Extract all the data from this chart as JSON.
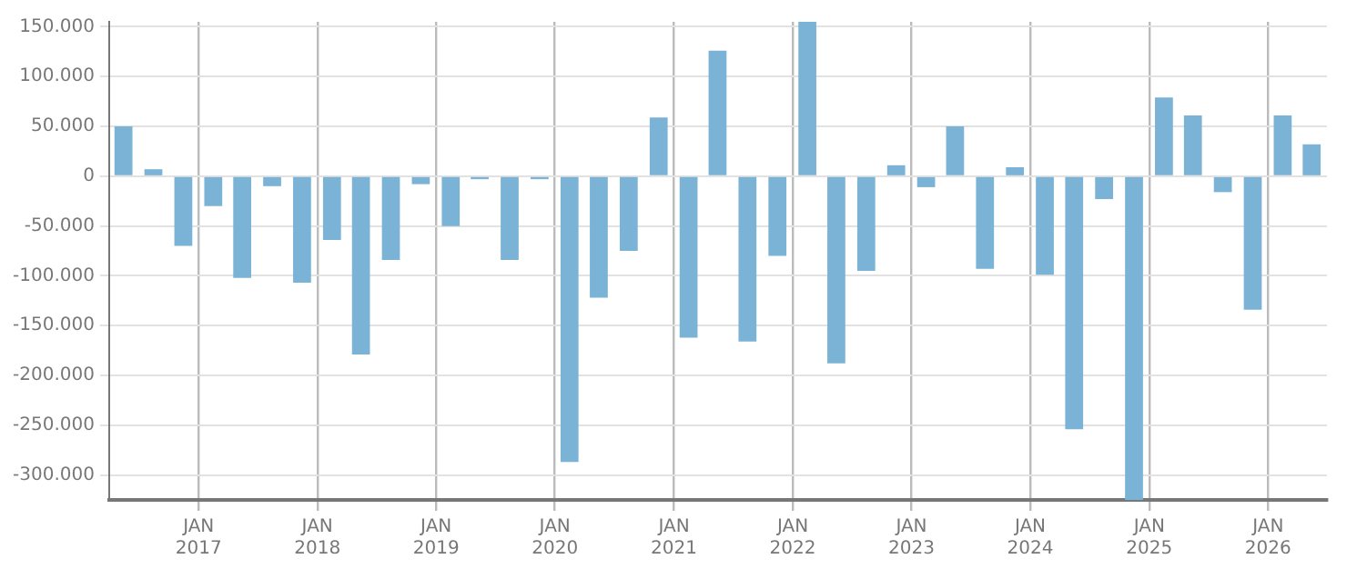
{
  "chart_data": {
    "type": "bar",
    "color": "#7ab3d5",
    "x": [
      "2016-05-15",
      "2016-08-15",
      "2016-11-15",
      "2017-02-15",
      "2017-05-15",
      "2017-08-15",
      "2017-11-15",
      "2018-02-15",
      "2018-05-15",
      "2018-08-15",
      "2018-11-15",
      "2019-02-15",
      "2019-05-15",
      "2019-08-15",
      "2019-11-15",
      "2020-02-15",
      "2020-05-15",
      "2020-08-15",
      "2020-11-15",
      "2021-02-15",
      "2021-05-15",
      "2021-08-15",
      "2021-11-15",
      "2022-02-15",
      "2022-05-15",
      "2022-08-15",
      "2022-11-15",
      "2023-02-15",
      "2023-05-15",
      "2023-08-15",
      "2023-11-15",
      "2024-02-15",
      "2024-05-15",
      "2024-08-15",
      "2024-11-15",
      "2025-02-15",
      "2025-05-15",
      "2025-08-15",
      "2025-11-15",
      "2026-02-15",
      "2026-05-15"
    ],
    "values": [
      50000,
      7000,
      -70000,
      -30000,
      -102000,
      -10000,
      -107000,
      -64000,
      -179000,
      -84000,
      -8000,
      -50000,
      -3000,
      -84000,
      -3000,
      -287000,
      -122000,
      -75000,
      59000,
      -162000,
      126000,
      -166000,
      -80000,
      155000,
      -188000,
      -95000,
      11000,
      -11000,
      50000,
      -93000,
      9000,
      -99000,
      -254000,
      -23000,
      -325000,
      79000,
      61000,
      -16000,
      -134000,
      61000,
      32000
    ],
    "xlim": [
      "2016-04",
      "2026-07"
    ],
    "xticks": [
      {
        "value": "2017-01",
        "label": "JAN 2017"
      },
      {
        "value": "2018-01",
        "label": "JAN 2018"
      },
      {
        "value": "2019-01",
        "label": "JAN 2019"
      },
      {
        "value": "2020-01",
        "label": "JAN 2020"
      },
      {
        "value": "2021-01",
        "label": "JAN 2021"
      },
      {
        "value": "2022-01",
        "label": "JAN 2022"
      },
      {
        "value": "2023-01",
        "label": "JAN 2023"
      },
      {
        "value": "2024-01",
        "label": "JAN 2024"
      },
      {
        "value": "2025-01",
        "label": "JAN 2025"
      },
      {
        "value": "2026-01",
        "label": "JAN 2026"
      }
    ],
    "ylim": [
      -325000,
      155000
    ],
    "yticks": [
      {
        "value": -300000,
        "label": "-300.000"
      },
      {
        "value": -250000,
        "label": "-250.000"
      },
      {
        "value": -200000,
        "label": "-200.000"
      },
      {
        "value": -150000,
        "label": "-150.000"
      },
      {
        "value": -100000,
        "label": "-100.000"
      },
      {
        "value": -50000,
        "label": "-50.000"
      },
      0,
      {
        "value": 50000,
        "label": "50.000"
      },
      {
        "value": 100000,
        "label": "100.000"
      },
      {
        "value": 150000,
        "label": "150.000"
      }
    ],
    "grid": true
  }
}
